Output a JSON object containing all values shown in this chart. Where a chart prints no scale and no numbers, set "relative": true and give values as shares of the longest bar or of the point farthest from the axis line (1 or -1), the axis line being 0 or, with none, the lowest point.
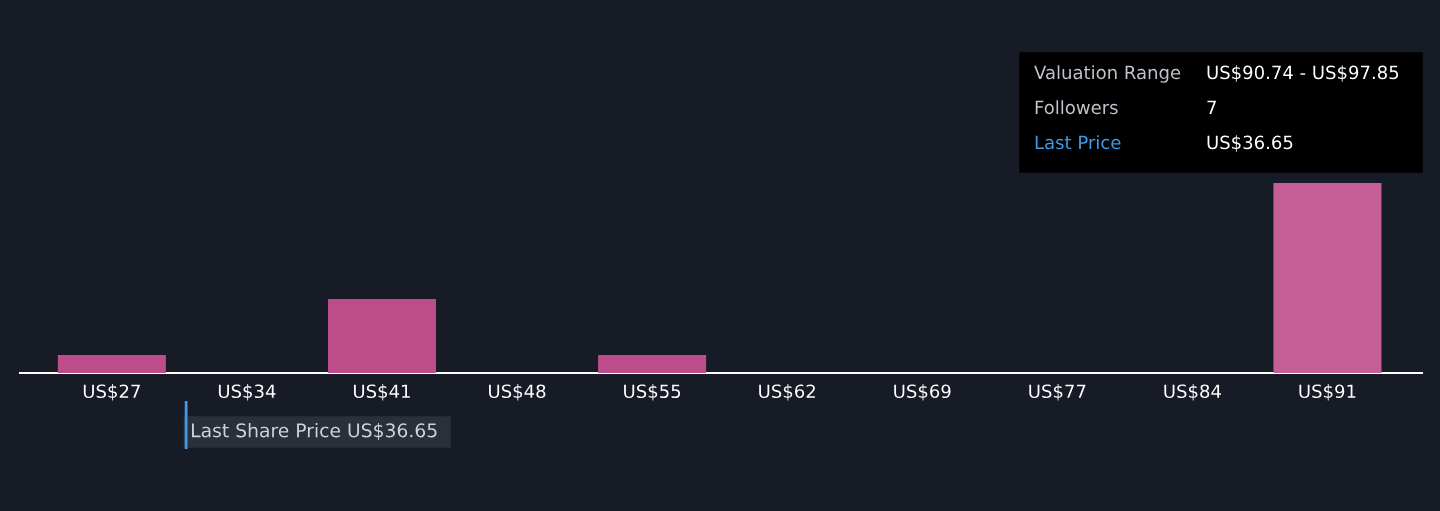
{
  "chart_data": {
    "type": "bar",
    "relative": true,
    "categories": [
      "US$27",
      "US$34",
      "US$41",
      "US$48",
      "US$55",
      "US$62",
      "US$69",
      "US$77",
      "US$84",
      "US$91"
    ],
    "values": [
      0.095,
      0,
      0.39,
      0,
      0.095,
      0,
      0,
      0,
      0,
      1
    ],
    "colors": [
      "#bd4d8a",
      "#bd4d8a",
      "#bd4d8a",
      "#bd4d8a",
      "#bd4d8a",
      "#bd4d8a",
      "#bd4d8a",
      "#bd4d8a",
      "#bd4d8a",
      "#c65f97"
    ],
    "annotations": [
      "Last Share Price US$36.65",
      "Valuation Range",
      "US$90.74 - US$97.85",
      "Followers",
      "7",
      "Last Price",
      "US$36.65"
    ],
    "grid": false
  }
}
